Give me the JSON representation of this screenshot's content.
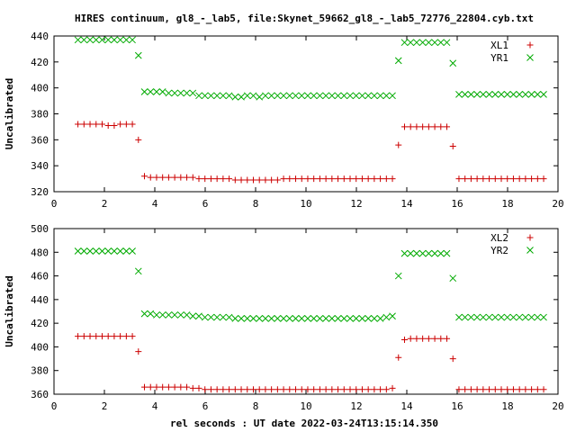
{
  "title": "HIRES continuum, gl8_-_lab5, file:Skynet_59662_gl8_-_lab5_72776_22804.cyb.txt",
  "xlabel": "rel seconds : UT date 2022-03-24T13:15:14.350",
  "chart_data": [
    {
      "type": "scatter",
      "ylabel": "Uncalibrated",
      "xlim": [
        0,
        20
      ],
      "ylim": [
        320,
        440
      ],
      "xticks": [
        0,
        2,
        4,
        6,
        8,
        10,
        12,
        14,
        16,
        18,
        20
      ],
      "yticks": [
        320,
        340,
        360,
        380,
        400,
        420,
        440
      ],
      "legend": "top-right",
      "grid": false,
      "series": [
        {
          "name": "XL1",
          "color": "#cc0000",
          "marker": "plus",
          "x": [
            0.95,
            1.19,
            1.43,
            1.67,
            1.91,
            2.15,
            2.39,
            2.63,
            2.87,
            3.11,
            3.35,
            3.59,
            3.83,
            4.07,
            4.31,
            4.55,
            4.79,
            5.03,
            5.27,
            5.51,
            5.75,
            5.99,
            6.23,
            6.47,
            6.71,
            6.95,
            7.19,
            7.43,
            7.67,
            7.91,
            8.15,
            8.39,
            8.63,
            8.87,
            9.11,
            9.35,
            9.59,
            9.83,
            10.07,
            10.31,
            10.55,
            10.79,
            11.03,
            11.27,
            11.51,
            11.75,
            11.99,
            12.23,
            12.47,
            12.71,
            12.95,
            13.19,
            13.43,
            13.67,
            13.91,
            14.15,
            14.39,
            14.63,
            14.87,
            15.11,
            15.35,
            15.59,
            15.83,
            16.07,
            16.31,
            16.55,
            16.79,
            17.03,
            17.27,
            17.51,
            17.75,
            17.99,
            18.23,
            18.47,
            18.71,
            18.95,
            19.19,
            19.43
          ],
          "y": [
            372,
            372,
            372,
            372,
            372,
            371,
            371,
            372,
            372,
            372,
            360,
            332,
            331,
            331,
            331,
            331,
            331,
            331,
            331,
            331,
            330,
            330,
            330,
            330,
            330,
            330,
            329,
            329,
            329,
            329,
            329,
            329,
            329,
            329,
            330,
            330,
            330,
            330,
            330,
            330,
            330,
            330,
            330,
            330,
            330,
            330,
            330,
            330,
            330,
            330,
            330,
            330,
            330,
            356,
            370,
            370,
            370,
            370,
            370,
            370,
            370,
            370,
            355,
            330,
            330,
            330,
            330,
            330,
            330,
            330,
            330,
            330,
            330,
            330,
            330,
            330,
            330,
            330
          ]
        },
        {
          "name": "YR1",
          "color": "#00aa00",
          "marker": "cross",
          "x": [
            0.95,
            1.19,
            1.43,
            1.67,
            1.91,
            2.15,
            2.39,
            2.63,
            2.87,
            3.11,
            3.35,
            3.59,
            3.83,
            4.07,
            4.31,
            4.55,
            4.79,
            5.03,
            5.27,
            5.51,
            5.75,
            5.99,
            6.23,
            6.47,
            6.71,
            6.95,
            7.19,
            7.43,
            7.67,
            7.91,
            8.15,
            8.39,
            8.63,
            8.87,
            9.11,
            9.35,
            9.59,
            9.83,
            10.07,
            10.31,
            10.55,
            10.79,
            11.03,
            11.27,
            11.51,
            11.75,
            11.99,
            12.23,
            12.47,
            12.71,
            12.95,
            13.19,
            13.43,
            13.67,
            13.91,
            14.15,
            14.39,
            14.63,
            14.87,
            15.11,
            15.35,
            15.59,
            15.83,
            16.07,
            16.31,
            16.55,
            16.79,
            17.03,
            17.27,
            17.51,
            17.75,
            17.99,
            18.23,
            18.47,
            18.71,
            18.95,
            19.19,
            19.43
          ],
          "y": [
            437,
            437,
            437,
            437,
            437,
            437,
            437,
            437,
            437,
            437,
            425,
            397,
            397,
            397,
            397,
            396,
            396,
            396,
            396,
            396,
            394,
            394,
            394,
            394,
            394,
            394,
            393,
            393,
            394,
            394,
            393,
            394,
            394,
            394,
            394,
            394,
            394,
            394,
            394,
            394,
            394,
            394,
            394,
            394,
            394,
            394,
            394,
            394,
            394,
            394,
            394,
            394,
            394,
            421,
            435,
            435,
            435,
            435,
            435,
            435,
            435,
            435,
            419,
            395,
            395,
            395,
            395,
            395,
            395,
            395,
            395,
            395,
            395,
            395,
            395,
            395,
            395,
            395
          ]
        }
      ]
    },
    {
      "type": "scatter",
      "ylabel": "Uncalibrated",
      "xlim": [
        0,
        20
      ],
      "ylim": [
        360,
        500
      ],
      "xticks": [
        0,
        2,
        4,
        6,
        8,
        10,
        12,
        14,
        16,
        18,
        20
      ],
      "yticks": [
        360,
        380,
        400,
        420,
        440,
        460,
        480,
        500
      ],
      "legend": "top-right",
      "grid": false,
      "series": [
        {
          "name": "XL2",
          "color": "#cc0000",
          "marker": "plus",
          "x": [
            0.95,
            1.19,
            1.43,
            1.67,
            1.91,
            2.15,
            2.39,
            2.63,
            2.87,
            3.11,
            3.35,
            3.59,
            3.83,
            4.07,
            4.31,
            4.55,
            4.79,
            5.03,
            5.27,
            5.51,
            5.75,
            5.99,
            6.23,
            6.47,
            6.71,
            6.95,
            7.19,
            7.43,
            7.67,
            7.91,
            8.15,
            8.39,
            8.63,
            8.87,
            9.11,
            9.35,
            9.59,
            9.83,
            10.07,
            10.31,
            10.55,
            10.79,
            11.03,
            11.27,
            11.51,
            11.75,
            11.99,
            12.23,
            12.47,
            12.71,
            12.95,
            13.19,
            13.43,
            13.67,
            13.91,
            14.15,
            14.39,
            14.63,
            14.87,
            15.11,
            15.35,
            15.59,
            15.83,
            16.07,
            16.31,
            16.55,
            16.79,
            17.03,
            17.27,
            17.51,
            17.75,
            17.99,
            18.23,
            18.47,
            18.71,
            18.95,
            19.19,
            19.43
          ],
          "y": [
            409,
            409,
            409,
            409,
            409,
            409,
            409,
            409,
            409,
            409,
            396,
            366,
            366,
            366,
            366,
            366,
            366,
            366,
            366,
            365,
            365,
            364,
            364,
            364,
            364,
            364,
            364,
            364,
            364,
            364,
            364,
            364,
            364,
            364,
            364,
            364,
            364,
            364,
            364,
            364,
            364,
            364,
            364,
            364,
            364,
            364,
            364,
            364,
            364,
            364,
            364,
            364,
            365,
            391,
            406,
            407,
            407,
            407,
            407,
            407,
            407,
            407,
            390,
            364,
            364,
            364,
            364,
            364,
            364,
            364,
            364,
            364,
            364,
            364,
            364,
            364,
            364,
            364
          ]
        },
        {
          "name": "YR2",
          "color": "#00aa00",
          "marker": "cross",
          "x": [
            0.95,
            1.19,
            1.43,
            1.67,
            1.91,
            2.15,
            2.39,
            2.63,
            2.87,
            3.11,
            3.35,
            3.59,
            3.83,
            4.07,
            4.31,
            4.55,
            4.79,
            5.03,
            5.27,
            5.51,
            5.75,
            5.99,
            6.23,
            6.47,
            6.71,
            6.95,
            7.19,
            7.43,
            7.67,
            7.91,
            8.15,
            8.39,
            8.63,
            8.87,
            9.11,
            9.35,
            9.59,
            9.83,
            10.07,
            10.31,
            10.55,
            10.79,
            11.03,
            11.27,
            11.51,
            11.75,
            11.99,
            12.23,
            12.47,
            12.71,
            12.95,
            13.19,
            13.43,
            13.67,
            13.91,
            14.15,
            14.39,
            14.63,
            14.87,
            15.11,
            15.35,
            15.59,
            15.83,
            16.07,
            16.31,
            16.55,
            16.79,
            17.03,
            17.27,
            17.51,
            17.75,
            17.99,
            18.23,
            18.47,
            18.71,
            18.95,
            19.19,
            19.43
          ],
          "y": [
            481,
            481,
            481,
            481,
            481,
            481,
            481,
            481,
            481,
            481,
            464,
            428,
            428,
            427,
            427,
            427,
            427,
            427,
            427,
            426,
            426,
            425,
            425,
            425,
            425,
            425,
            424,
            424,
            424,
            424,
            424,
            424,
            424,
            424,
            424,
            424,
            424,
            424,
            424,
            424,
            424,
            424,
            424,
            424,
            424,
            424,
            424,
            424,
            424,
            424,
            424,
            425,
            426,
            460,
            479,
            479,
            479,
            479,
            479,
            479,
            479,
            479,
            458,
            425,
            425,
            425,
            425,
            425,
            425,
            425,
            425,
            425,
            425,
            425,
            425,
            425,
            425,
            425
          ]
        }
      ]
    }
  ]
}
